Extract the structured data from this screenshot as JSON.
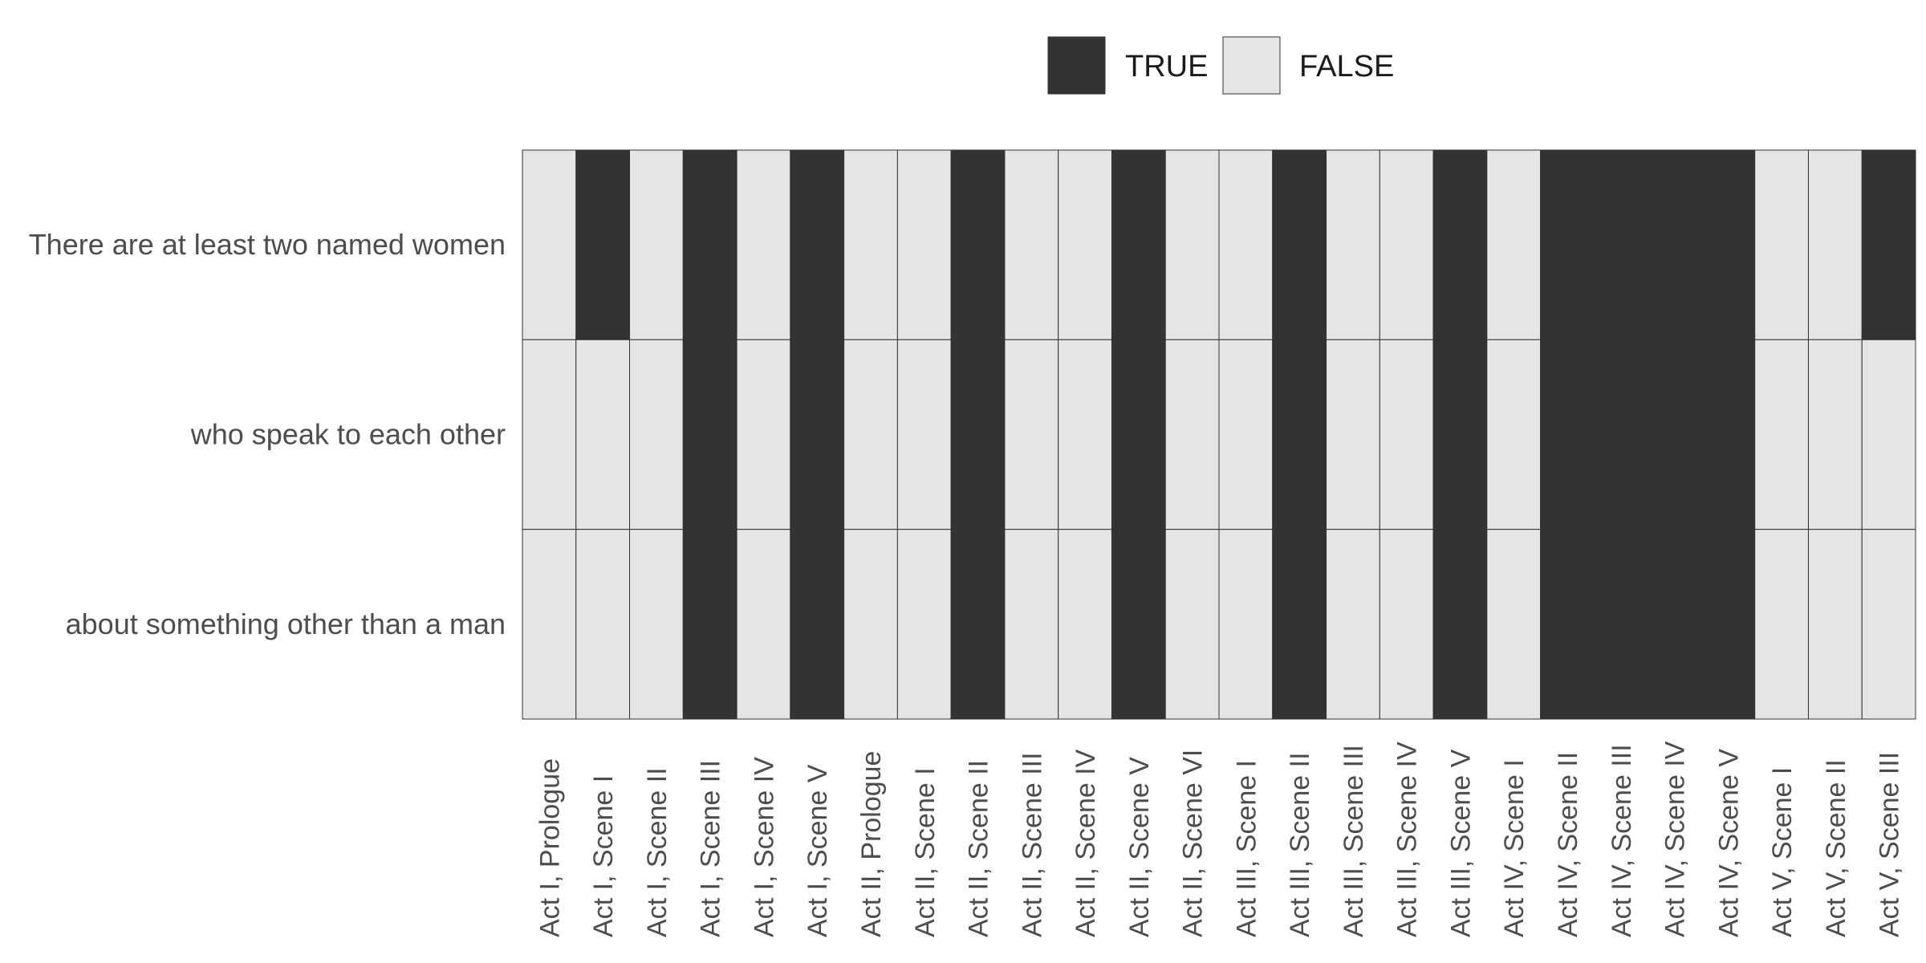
{
  "chart_data": {
    "type": "heatmap",
    "title": "",
    "xlabel": "",
    "ylabel": "",
    "grid": true,
    "legend_position": "top",
    "legend": [
      {
        "label": "TRUE",
        "value": true
      },
      {
        "label": "FALSE",
        "value": false
      }
    ],
    "colors": {
      "true": "#333333",
      "false": "#e5e5e5",
      "border": "#333333"
    },
    "rows": [
      "There are at least two named women",
      "who speak to each other",
      "about something other than a man"
    ],
    "columns": [
      "Act I, Prologue",
      "Act I, Scene I",
      "Act I, Scene II",
      "Act I, Scene III",
      "Act I, Scene IV",
      "Act I, Scene V",
      "Act II, Prologue",
      "Act II, Scene I",
      "Act II, Scene II",
      "Act II, Scene III",
      "Act II, Scene IV",
      "Act II, Scene V",
      "Act II, Scene VI",
      "Act III, Scene I",
      "Act III, Scene II",
      "Act III, Scene III",
      "Act III, Scene IV",
      "Act III, Scene V",
      "Act IV, Scene I",
      "Act IV, Scene II",
      "Act IV, Scene III",
      "Act IV, Scene IV",
      "Act IV, Scene V",
      "Act V, Scene I",
      "Act V, Scene II",
      "Act V, Scene III"
    ],
    "values": [
      [
        false,
        true,
        false,
        true,
        false,
        true,
        false,
        false,
        true,
        false,
        false,
        true,
        false,
        false,
        true,
        false,
        false,
        true,
        false,
        true,
        true,
        true,
        true,
        false,
        false,
        true
      ],
      [
        false,
        false,
        false,
        true,
        false,
        true,
        false,
        false,
        true,
        false,
        false,
        true,
        false,
        false,
        true,
        false,
        false,
        true,
        false,
        true,
        true,
        true,
        true,
        false,
        false,
        false
      ],
      [
        false,
        false,
        false,
        true,
        false,
        true,
        false,
        false,
        true,
        false,
        false,
        true,
        false,
        false,
        true,
        false,
        false,
        true,
        false,
        true,
        true,
        true,
        true,
        false,
        false,
        false
      ]
    ]
  }
}
